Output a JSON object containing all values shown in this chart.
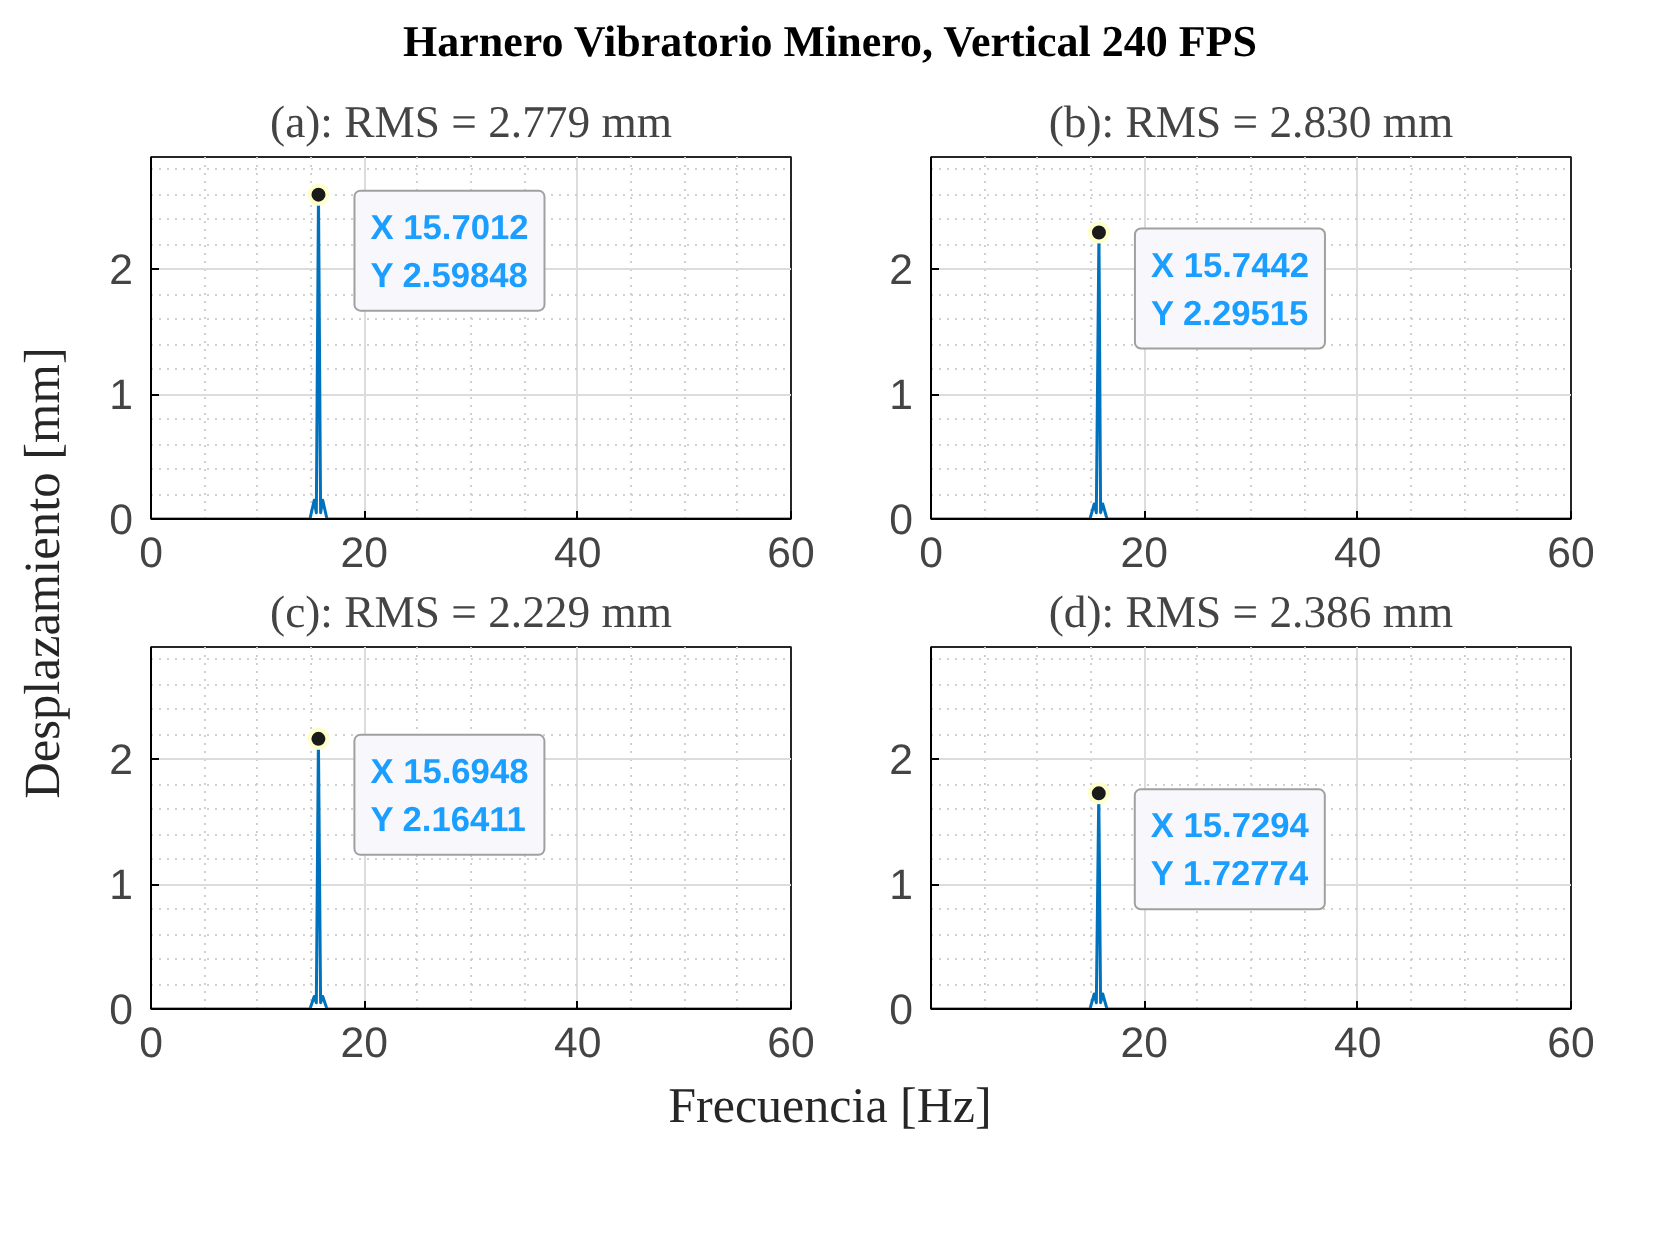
{
  "chart_data": [
    {
      "type": "line",
      "title": "Harnero Vibratorio Minero, Vertical  240 FPS",
      "subtitle": "(a): RMS = 2.779 mm",
      "ylabel": "Desplazamiento [mm]",
      "x": [
        0,
        14.9,
        15.3,
        15.5,
        15.7012,
        15.9,
        16.1,
        16.5,
        60
      ],
      "series": [
        {
          "color": "#0072bd",
          "values": [
            0,
            0,
            0.15,
            0.05,
            2.59848,
            0.05,
            0.15,
            0,
            0
          ]
        }
      ],
      "xlim": [
        0,
        60
      ],
      "ylim": [
        0,
        2.9
      ],
      "xticks": [
        0,
        20,
        40,
        60
      ],
      "yticks": [
        0,
        1,
        2
      ],
      "grid": true,
      "annotations": [
        {
          "text": "X 15.7012\nY 2.59848",
          "x": 15.7012,
          "y": 2.59848
        }
      ]
    },
    {
      "type": "line",
      "subtitle": "(b): RMS = 2.830 mm",
      "x": [
        0,
        14.9,
        15.3,
        15.5,
        15.7442,
        15.9,
        16.1,
        16.5,
        60
      ],
      "series": [
        {
          "color": "#0072bd",
          "values": [
            0,
            0,
            0.12,
            0.05,
            2.29515,
            0.05,
            0.12,
            0,
            0
          ]
        }
      ],
      "xlim": [
        0,
        60
      ],
      "ylim": [
        0,
        2.9
      ],
      "xticks": [
        0,
        20,
        40,
        60
      ],
      "yticks": [
        0,
        1,
        2
      ],
      "grid": true,
      "annotations": [
        {
          "text": "X 15.7442\nY 2.29515",
          "x": 15.7442,
          "y": 2.29515
        }
      ]
    },
    {
      "type": "line",
      "subtitle": "(c): RMS = 2.229 mm",
      "xlabel": "Frecuencia [Hz]",
      "x": [
        0,
        14.9,
        15.3,
        15.5,
        15.6948,
        15.9,
        16.1,
        16.5,
        60
      ],
      "series": [
        {
          "color": "#0072bd",
          "values": [
            0,
            0,
            0.1,
            0.05,
            2.16411,
            0.05,
            0.1,
            0,
            0
          ]
        }
      ],
      "xlim": [
        0,
        60
      ],
      "ylim": [
        0,
        2.9
      ],
      "xticks": [
        0,
        20,
        40,
        60
      ],
      "yticks": [
        0,
        1,
        2
      ],
      "grid": true,
      "annotations": [
        {
          "text": "X 15.6948\nY 2.16411",
          "x": 15.6948,
          "y": 2.16411
        }
      ]
    },
    {
      "type": "line",
      "subtitle": "(d): RMS = 2.386 mm",
      "x": [
        0,
        14.9,
        15.3,
        15.5,
        15.7294,
        15.9,
        16.1,
        16.5,
        60
      ],
      "series": [
        {
          "color": "#0072bd",
          "values": [
            0,
            0,
            0.12,
            0.05,
            1.72774,
            0.05,
            0.12,
            0,
            0
          ]
        }
      ],
      "xlim": [
        0,
        60
      ],
      "ylim": [
        0,
        2.9
      ],
      "xticks": [
        {
          "value": 0,
          "label": null
        },
        20,
        40,
        60
      ],
      "yticks": [
        0,
        1,
        2
      ],
      "grid": true,
      "annotations": [
        {
          "text": "X 15.7294\nY 1.72774",
          "x": 15.7294,
          "y": 1.72774
        }
      ]
    }
  ]
}
